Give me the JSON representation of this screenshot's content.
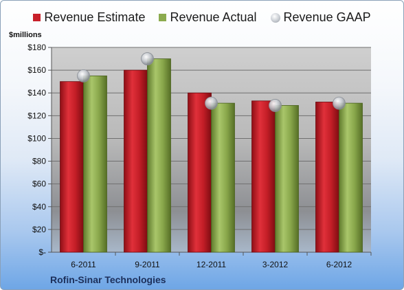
{
  "chart_data": {
    "type": "bar",
    "ylabel": "$millions",
    "ylim": [
      0,
      180
    ],
    "yticks": [
      0,
      20,
      40,
      60,
      80,
      100,
      120,
      140,
      160,
      180
    ],
    "ytick_labels": [
      "$-",
      "$20",
      "$40",
      "$60",
      "$80",
      "$100",
      "$120",
      "$140",
      "$160",
      "$180"
    ],
    "categories": [
      "6-2011",
      "9-2011",
      "12-2011",
      "3-2012",
      "6-2012"
    ],
    "series": [
      {
        "name": "Revenue Estimate",
        "kind": "bar",
        "color": "#c8202a",
        "values": [
          150,
          160,
          140,
          133,
          132
        ]
      },
      {
        "name": "Revenue Actual",
        "kind": "bar",
        "color": "#8cab4e",
        "values": [
          155,
          170,
          131,
          129,
          131
        ]
      },
      {
        "name": "Revenue GAAP",
        "kind": "marker",
        "color": "#b8bcc2",
        "values": [
          155,
          170,
          131,
          129,
          131
        ]
      }
    ],
    "company": "Rofin-Sinar Technologies",
    "grid": true,
    "legend_position": "top"
  }
}
